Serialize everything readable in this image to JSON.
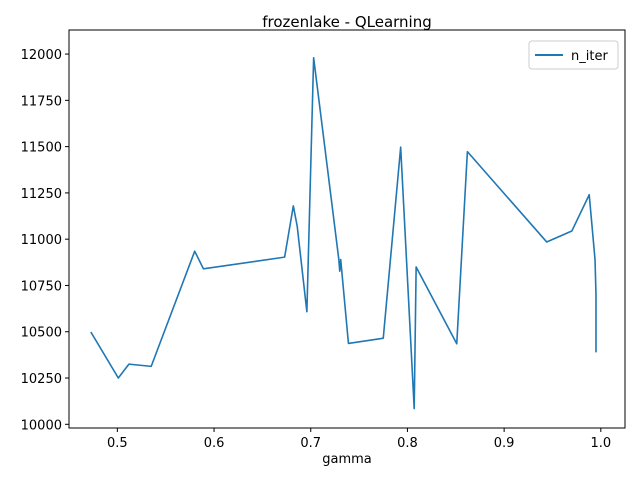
{
  "chart_data": {
    "type": "line",
    "title": "frozenlake - QLearning",
    "xlabel": "gamma",
    "ylabel": "",
    "xlim": [
      0.45,
      1.025
    ],
    "ylim": [
      9980,
      12130
    ],
    "x_ticks": [
      0.5,
      0.6,
      0.7,
      0.8,
      0.9,
      1.0
    ],
    "x_tick_labels": [
      "0.5",
      "0.6",
      "0.7",
      "0.8",
      "0.9",
      "1.0"
    ],
    "y_ticks": [
      10000,
      10250,
      10500,
      10750,
      11000,
      11250,
      11500,
      11750,
      12000
    ],
    "y_tick_labels": [
      "10000",
      "10250",
      "10500",
      "10750",
      "11000",
      "11250",
      "11500",
      "11750",
      "12000"
    ],
    "grid": false,
    "legend_position": "top-right",
    "series": [
      {
        "name": "n_iter",
        "color": "#1f77b4",
        "points": [
          [
            0.473,
            10495
          ],
          [
            0.501,
            10250
          ],
          [
            0.512,
            10325
          ],
          [
            0.535,
            10313
          ],
          [
            0.58,
            10935
          ],
          [
            0.589,
            10840
          ],
          [
            0.673,
            10903
          ],
          [
            0.682,
            11180
          ],
          [
            0.686,
            11070
          ],
          [
            0.696,
            10608
          ],
          [
            0.703,
            11980
          ],
          [
            0.729,
            10892
          ],
          [
            0.73,
            10827
          ],
          [
            0.731,
            10890
          ],
          [
            0.739,
            10437
          ],
          [
            0.775,
            10465
          ],
          [
            0.793,
            11497
          ],
          [
            0.807,
            10085
          ],
          [
            0.809,
            10850
          ],
          [
            0.851,
            10435
          ],
          [
            0.862,
            11473
          ],
          [
            0.944,
            10985
          ],
          [
            0.97,
            11044
          ],
          [
            0.988,
            11240
          ],
          [
            0.994,
            10890
          ],
          [
            0.995,
            10700
          ],
          [
            0.995,
            10393
          ]
        ]
      }
    ]
  }
}
